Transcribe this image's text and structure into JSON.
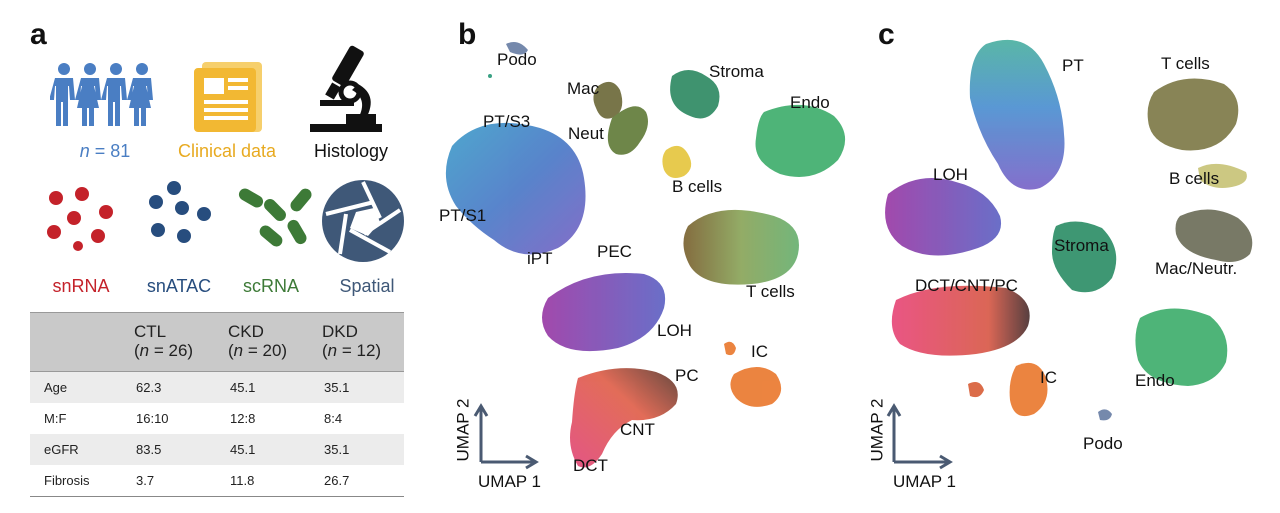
{
  "panels": {
    "a": "a",
    "b": "b",
    "c": "c"
  },
  "icons": {
    "people": {
      "label_n": "n",
      "label_rest": " = 81",
      "color": "#4a7ec3"
    },
    "clinical": {
      "label": "Clinical data",
      "color": "#f2b833"
    },
    "histology": {
      "label": "Histology",
      "color": "#111111"
    },
    "snrna": {
      "label": "snRNA",
      "color": "#c4222a"
    },
    "snatac": {
      "label": "snATAC",
      "color": "#274d7e"
    },
    "scrna": {
      "label": "scRNA",
      "color": "#3d7a37"
    },
    "spatial": {
      "label": "Spatial",
      "color": "#3f5878"
    }
  },
  "table": {
    "headers": [
      {
        "name": "",
        "n": ""
      },
      {
        "name": "CTL",
        "n": "n",
        "eq": " = 26)"
      },
      {
        "name": "CKD",
        "n": "n",
        "eq": " = 20)"
      },
      {
        "name": "DKD",
        "n": "n",
        "eq": " = 12)"
      }
    ],
    "rows": [
      {
        "label": "Age",
        "ctl": "62.3",
        "ckd": "45.1",
        "dkd": "35.1"
      },
      {
        "label": "M:F",
        "ctl": "16:10",
        "ckd": "12:8",
        "dkd": "8:4"
      },
      {
        "label": "eGFR",
        "ctl": "83.5",
        "ckd": "45.1",
        "dkd": "35.1"
      },
      {
        "label": "Fibrosis",
        "ctl": "3.7",
        "ckd": "11.8",
        "dkd": "26.7"
      }
    ]
  },
  "umap_b": {
    "labels": {
      "podo": "Podo",
      "mac": "Mac",
      "stroma": "Stroma",
      "endo": "Endo",
      "pts3": "PT/S3",
      "neut": "Neut",
      "bcells": "B cells",
      "pts1": "PT/S1",
      "ipt": "iPT",
      "pec": "PEC",
      "tcells": "T cells",
      "loh": "LOH",
      "ic": "IC",
      "pc": "PC",
      "cnt": "CNT",
      "dct": "DCT"
    },
    "axis_x": "UMAP 1",
    "axis_y": "UMAP 2"
  },
  "umap_c": {
    "labels": {
      "pt": "PT",
      "tcells": "T cells",
      "loh": "LOH",
      "bcells": "B cells",
      "stroma": "Stroma",
      "macneutr": "Mac/Neutr.",
      "dctcntpc": "DCT/CNT/PC",
      "ic": "IC",
      "endo": "Endo",
      "podo": "Podo"
    },
    "axis_x": "UMAP 1",
    "axis_y": "UMAP 2"
  }
}
